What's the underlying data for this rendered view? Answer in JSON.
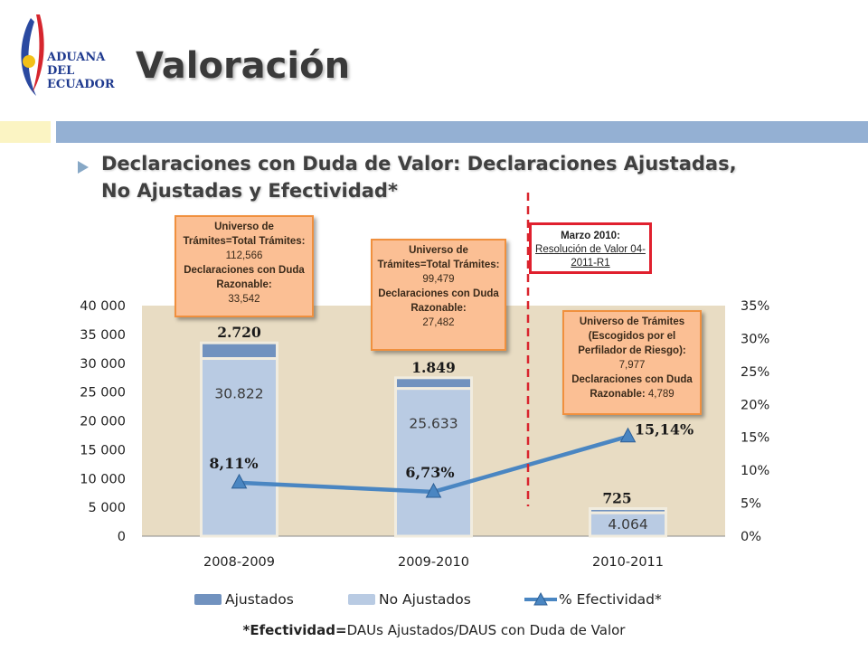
{
  "logo": {
    "line1": "ADUANA",
    "line2": "DEL",
    "line3": "ECUADOR"
  },
  "slide_title": "Valoración",
  "subtitle": "Declaraciones con Duda de Valor: Declaraciones Ajustadas, No Ajustadas y Efectividad*",
  "callouts": [
    {
      "l1": "Universo de Trámites=Total Trámites:",
      "v1": "112,566",
      "l2": "Declaraciones con Duda Razonable:",
      "v2": "33,542"
    },
    {
      "l1": "Universo de Trámites=Total Trámites:",
      "v1": "99,479",
      "l2": "Declaraciones con Duda Razonable:",
      "v2": "27,482"
    },
    {
      "l1": "Universo de Trámites (Escogidos por el Perfilador de Riesgo):",
      "v1": "7,977",
      "l2": "Declaraciones con Duda Razonable:",
      "v2": "4,789"
    }
  ],
  "note": {
    "line1": "Marzo 2010:",
    "line2": "Resolución de Valor 04-2011-R1"
  },
  "footnote": {
    "bold": "*Efectividad=",
    "rest": "DAUs Ajustados/DAUS con Duda de Valor"
  },
  "chart_data": {
    "type": "bar",
    "stacked": true,
    "categories": [
      "2008-2009",
      "2009-2010",
      "2010-2011"
    ],
    "series": [
      {
        "name": "Ajustados",
        "values": [
          2720,
          1849,
          725
        ],
        "labels": [
          "2.720",
          "1.849",
          "725"
        ],
        "color": "#7192bf"
      },
      {
        "name": "No Ajustados",
        "values": [
          30822,
          25633,
          4064
        ],
        "labels": [
          "30.822",
          "25.633",
          "4.064"
        ],
        "color": "#b9cbe3"
      },
      {
        "name": "% Efectividad*",
        "type": "line",
        "axis": "right",
        "values": [
          8.11,
          6.73,
          15.14
        ],
        "labels": [
          "8,11%",
          "6,73%",
          "15,14%"
        ],
        "color": "#4a86c2"
      }
    ],
    "ylim": [
      0,
      40000
    ],
    "y2lim": [
      0,
      35
    ],
    "yticks": [
      "0",
      "5 000",
      "10 000",
      "15 000",
      "20 000",
      "25 000",
      "30 000",
      "35 000",
      "40 000"
    ],
    "y2ticks": [
      "0%",
      "5%",
      "10%",
      "15%",
      "20%",
      "25%",
      "30%",
      "35%"
    ],
    "plot_background": "#e8dcc3",
    "legend": "bottom",
    "grid": false
  }
}
